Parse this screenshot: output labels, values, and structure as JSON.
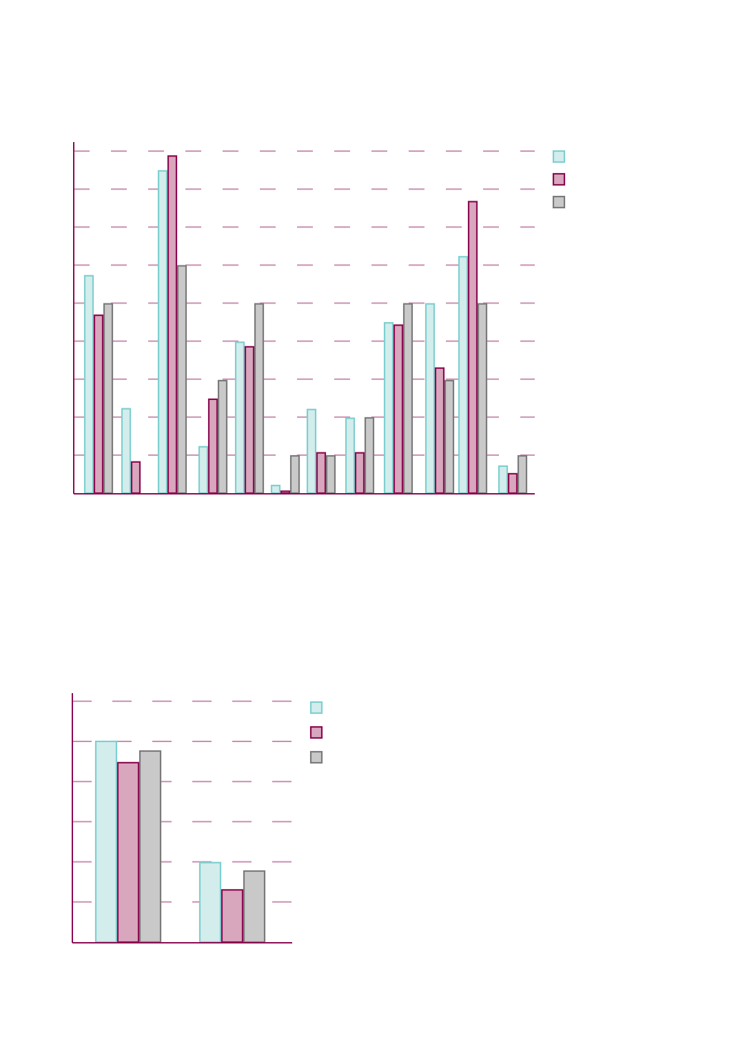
{
  "colors": {
    "axis": "#8b0a50",
    "grid": "#c98fb0",
    "series_fill": [
      "#d3ecec",
      "#d8a6bd",
      "#c9c9c9"
    ],
    "series_stroke": [
      "#7ecfcf",
      "#8b0a50",
      "#7a7a7a"
    ]
  },
  "chart_data": [
    {
      "type": "bar",
      "grid": true,
      "legend": "top-right",
      "ylim": [
        0,
        9
      ],
      "categories": [
        "",
        "",
        "",
        "",
        "",
        "",
        "",
        "",
        "",
        "",
        "",
        ""
      ],
      "series": [
        {
          "values": [
            5.72,
            2.22,
            8.48,
            1.22,
            3.97,
            0.2,
            2.2,
            1.97,
            4.48,
            4.98,
            6.22,
            0.71
          ]
        },
        {
          "values": [
            4.68,
            0.82,
            8.87,
            2.47,
            3.85,
            0.05,
            1.06,
            1.06,
            4.42,
            3.29,
            7.67,
            0.51
          ]
        },
        {
          "values": [
            4.98,
            null,
            5.98,
            2.96,
            4.98,
            0.98,
            0.98,
            1.98,
            4.98,
            2.96,
            4.98,
            0.98
          ]
        }
      ]
    },
    {
      "type": "bar",
      "grid": true,
      "legend": "top-right",
      "ylim": [
        0,
        6
      ],
      "categories": [
        "",
        ""
      ],
      "series": [
        {
          "values": [
            5.0,
            1.98
          ]
        },
        {
          "values": [
            4.47,
            1.3
          ]
        },
        {
          "values": [
            4.76,
            1.77
          ]
        }
      ]
    }
  ]
}
